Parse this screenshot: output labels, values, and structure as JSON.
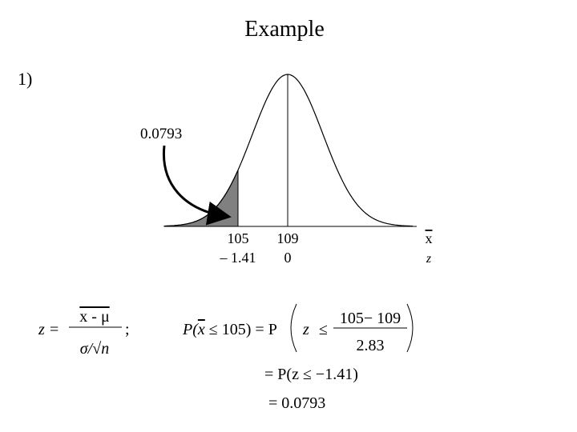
{
  "title": "Example",
  "item_label": "1)",
  "diagram": {
    "area_label": "0.0793",
    "x_labels": [
      "105",
      "109"
    ],
    "z_labels": [
      "– 1.41",
      "0"
    ],
    "x_axis_label": "x",
    "z_axis_label": "z"
  },
  "formula": {
    "lhs": "z",
    "eq": "=",
    "numerator": "x - μ",
    "denominator": "σ/√n",
    "sep": ";"
  },
  "work": {
    "line1": {
      "p_open": "P(",
      "xbar": "x",
      "rest": "≤ 105) = P",
      "z": "z",
      "le": "≤",
      "numerator": "105− 109",
      "denominator": "2.83"
    },
    "line2": "= P(z ≤ −1.41)",
    "line3": "= 0.0793"
  }
}
